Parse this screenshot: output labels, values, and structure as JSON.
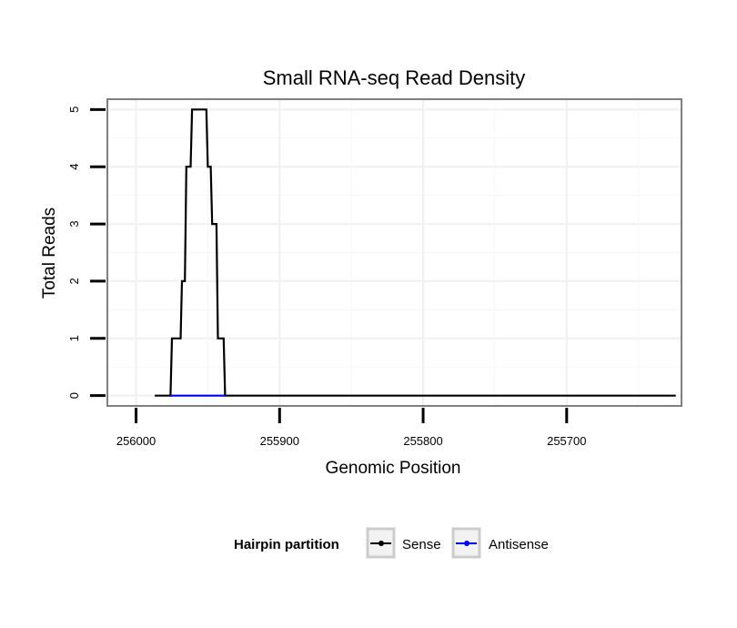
{
  "chart_data": {
    "type": "line",
    "title": "Small RNA-seq Read Density",
    "xlabel": "Genomic Position",
    "ylabel": "Total Reads",
    "x_reversed": true,
    "xlim": [
      256020,
      255620
    ],
    "ylim": [
      -0.18,
      5.18
    ],
    "x_ticks": [
      256000,
      255900,
      255800,
      255700
    ],
    "x_tick_labels": [
      "256000",
      "255900",
      "255800",
      "255700"
    ],
    "y_ticks": [
      0,
      1,
      2,
      3,
      4,
      5
    ],
    "y_tick_labels": [
      "0",
      "1",
      "2",
      "3",
      "4",
      "5"
    ],
    "grid": true,
    "legend": {
      "title": "Hairpin partition",
      "position": "bottom",
      "entries": [
        {
          "name": "Sense",
          "color": "#000000"
        },
        {
          "name": "Antisense",
          "color": "#0000ff"
        }
      ]
    },
    "series": [
      {
        "name": "Sense",
        "color": "#000000",
        "x": [
          255987,
          255976,
          255975,
          255969,
          255968,
          255966,
          255965,
          255962,
          255961,
          255958,
          255956,
          255951,
          255950,
          255948,
          255947,
          255944,
          255943,
          255939,
          255938,
          255920,
          255900,
          255800,
          255700,
          255624
        ],
        "y": [
          0,
          0,
          1,
          1,
          2,
          2,
          4,
          4,
          5,
          5,
          5,
          5,
          4,
          4,
          3,
          3,
          1,
          1,
          0,
          0,
          0,
          0,
          0,
          0
        ]
      },
      {
        "name": "Antisense",
        "color": "#0000ff",
        "x": [
          255976,
          255938
        ],
        "y": [
          0,
          0
        ]
      }
    ]
  }
}
